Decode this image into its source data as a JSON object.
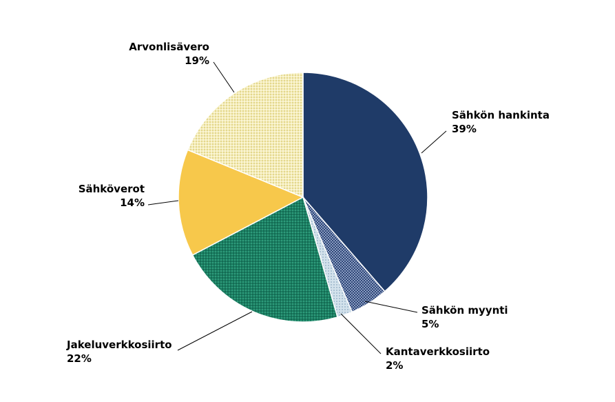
{
  "chart_data": {
    "type": "pie",
    "start_angle_deg": 0,
    "direction": "clockwise",
    "slices": [
      {
        "label": "Sähkön hankinta",
        "value": 39,
        "value_label": "39%",
        "color": "#1f3b68",
        "pattern": "none"
      },
      {
        "label": "Sähkön myynti",
        "value": 5,
        "value_label": "5%",
        "color": "#3c5586",
        "pattern": "dots"
      },
      {
        "label": "Kantaverkkosiirto",
        "value": 2,
        "value_label": "2%",
        "color": "#c7d8e4",
        "pattern": "dots"
      },
      {
        "label": "Jakeluverkkosiirto",
        "value": 22,
        "value_label": "22%",
        "color": "#1b7e62",
        "pattern": "dots"
      },
      {
        "label": "Sähköverot",
        "value": 14,
        "value_label": "14%",
        "color": "#f7c84b",
        "pattern": "none"
      },
      {
        "label": "Arvonlisävero",
        "value": 19,
        "value_label": "19%",
        "color": "#efe6a6",
        "pattern": "dots"
      }
    ]
  }
}
